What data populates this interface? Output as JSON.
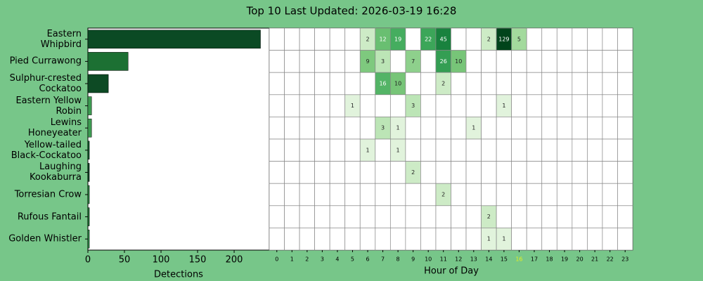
{
  "chart_data": [
    {
      "type": "barh",
      "title": "Top 10 Last Updated: 2026-03-19 16:28",
      "categories": [
        "Eastern\nWhipbird",
        "Pied Currawong",
        "Sulphur-crested\nCockatoo",
        "Eastern Yellow\nRobin",
        "Lewins\nHoneyeater",
        "Yellow-tailed\nBlack-Cockatoo",
        "Laughing\nKookaburra",
        "Torresian Crow",
        "Rufous Fantail",
        "Golden Whistler"
      ],
      "values": [
        236,
        55,
        28,
        5,
        5,
        2,
        2,
        2,
        2,
        2
      ],
      "colors": [
        "#0b4a24",
        "#1c7033",
        "#0d4a24",
        "#3c9a51",
        "#3c9a51",
        "#105a2b",
        "#0b4423",
        "#2a8241",
        "#1f7436",
        "#2d8a47"
      ],
      "xlabel": "Detections",
      "xlim": [
        0,
        248
      ],
      "xticks": [
        0,
        50,
        100,
        150,
        200
      ]
    },
    {
      "type": "heatmap",
      "xlabel": "Hour of Day",
      "x": [
        0,
        1,
        2,
        3,
        4,
        5,
        6,
        7,
        8,
        9,
        10,
        11,
        12,
        13,
        14,
        15,
        16,
        17,
        18,
        19,
        20,
        21,
        22,
        23
      ],
      "highlight_tick": 16,
      "highlight_color": "#e4f021",
      "colormap": "Greens",
      "scale": "log",
      "values": [
        [
          null,
          null,
          null,
          null,
          null,
          null,
          2,
          12,
          19,
          null,
          22,
          45,
          null,
          null,
          2,
          129,
          5,
          null,
          null,
          null,
          null,
          null,
          null,
          null
        ],
        [
          null,
          null,
          null,
          null,
          null,
          null,
          9,
          3,
          null,
          7,
          null,
          26,
          10,
          null,
          null,
          null,
          null,
          null,
          null,
          null,
          null,
          null,
          null,
          null
        ],
        [
          null,
          null,
          null,
          null,
          null,
          null,
          null,
          16,
          10,
          null,
          null,
          2,
          null,
          null,
          null,
          null,
          null,
          null,
          null,
          null,
          null,
          null,
          null,
          null
        ],
        [
          null,
          null,
          null,
          null,
          null,
          1,
          null,
          null,
          null,
          3,
          null,
          null,
          null,
          null,
          null,
          1,
          null,
          null,
          null,
          null,
          null,
          null,
          null,
          null
        ],
        [
          null,
          null,
          null,
          null,
          null,
          null,
          null,
          3,
          1,
          null,
          null,
          null,
          null,
          1,
          null,
          null,
          null,
          null,
          null,
          null,
          null,
          null,
          null,
          null
        ],
        [
          null,
          null,
          null,
          null,
          null,
          null,
          1,
          null,
          1,
          null,
          null,
          null,
          null,
          null,
          null,
          null,
          null,
          null,
          null,
          null,
          null,
          null,
          null,
          null
        ],
        [
          null,
          null,
          null,
          null,
          null,
          null,
          null,
          null,
          null,
          2,
          null,
          null,
          null,
          null,
          null,
          null,
          null,
          null,
          null,
          null,
          null,
          null,
          null,
          null
        ],
        [
          null,
          null,
          null,
          null,
          null,
          null,
          null,
          null,
          null,
          null,
          null,
          2,
          null,
          null,
          null,
          null,
          null,
          null,
          null,
          null,
          null,
          null,
          null,
          null
        ],
        [
          null,
          null,
          null,
          null,
          null,
          null,
          null,
          null,
          null,
          null,
          null,
          null,
          null,
          null,
          2,
          null,
          null,
          null,
          null,
          null,
          null,
          null,
          null,
          null
        ],
        [
          null,
          null,
          null,
          null,
          null,
          null,
          null,
          null,
          null,
          null,
          null,
          null,
          null,
          null,
          1,
          1,
          null,
          null,
          null,
          null,
          null,
          null,
          null,
          null
        ]
      ]
    }
  ]
}
